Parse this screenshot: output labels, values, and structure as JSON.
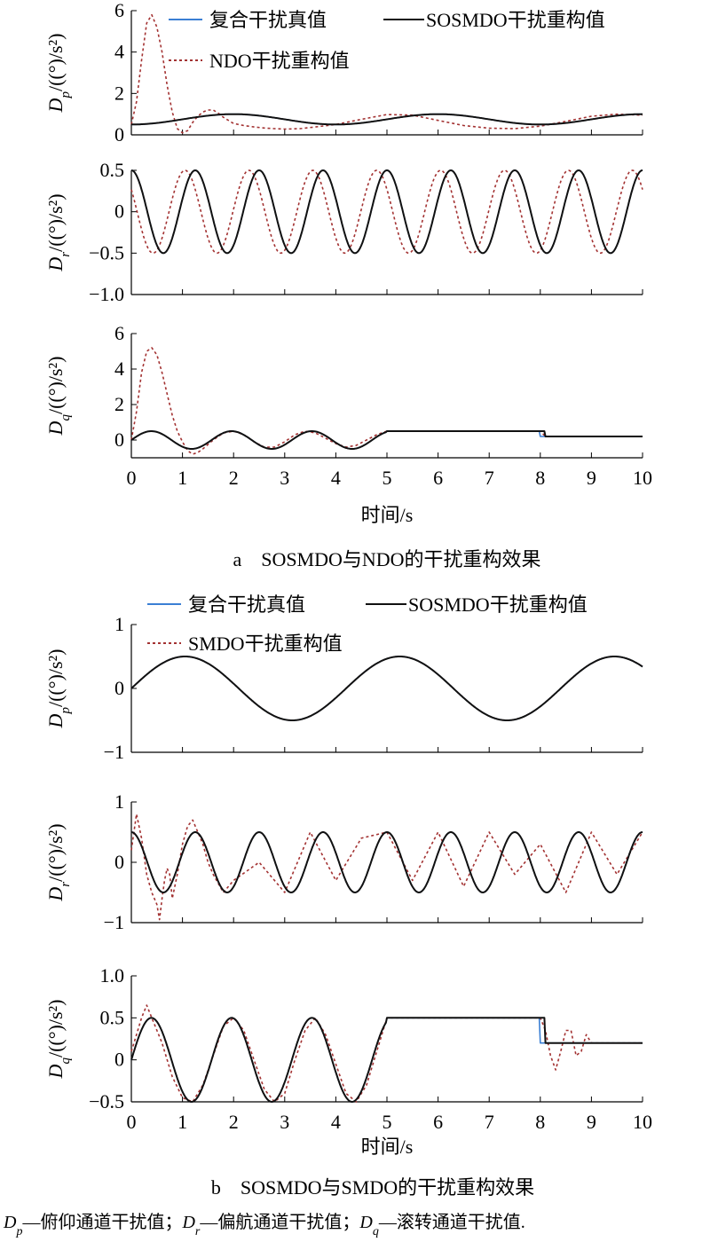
{
  "chart_data": [
    {
      "type": "line",
      "panel_group": "a",
      "ylabel": "D_p/((°)/s²)",
      "ylabel_sub": "p",
      "ylim": [
        0,
        6
      ],
      "yticks": [
        "0",
        "2",
        "4",
        "6"
      ],
      "yticks_values": [
        0,
        2,
        4,
        6
      ],
      "legend": [
        "复合干扰真值",
        "SOSMDO干扰重构值",
        "NDO干扰重构值"
      ],
      "series": [
        {
          "name": "复合干扰真值",
          "kind": "sine",
          "offset": 0.75,
          "amp": 0.25,
          "period": 4.0,
          "phase_t": 1.0
        },
        {
          "name": "SOSMDO干扰重构值",
          "kind": "sine",
          "offset": 0.75,
          "amp": 0.25,
          "period": 4.0,
          "phase_t": 1.0
        },
        {
          "name": "NDO干扰重构值",
          "kind": "points",
          "x": [
            0,
            0.1,
            0.2,
            0.3,
            0.4,
            0.5,
            0.6,
            0.7,
            0.8,
            0.9,
            1.0,
            1.1,
            1.2,
            1.3,
            1.4,
            1.5,
            1.6,
            1.7,
            1.8,
            1.9,
            2.0,
            2.2,
            2.4,
            2.6,
            2.8,
            3.0,
            3.3,
            3.6,
            4.0,
            4.5,
            5.0,
            5.5,
            6.0,
            6.5,
            7.0,
            7.5,
            8.0,
            8.5,
            9.0,
            9.5,
            10.0
          ],
          "y": [
            0.5,
            1.6,
            3.6,
            5.4,
            5.8,
            5.2,
            4.0,
            2.4,
            1.1,
            0.3,
            0.1,
            0.2,
            0.6,
            0.9,
            1.1,
            1.2,
            1.2,
            1.05,
            0.85,
            0.7,
            0.55,
            0.45,
            0.38,
            0.33,
            0.3,
            0.28,
            0.3,
            0.38,
            0.5,
            0.75,
            0.98,
            0.95,
            0.7,
            0.45,
            0.32,
            0.3,
            0.42,
            0.65,
            0.9,
            1.0,
            0.95
          ]
        }
      ]
    },
    {
      "type": "line",
      "panel_group": "a",
      "ylabel": "D_r/((°)/s²)",
      "ylabel_sub": "r",
      "ylim": [
        -1.0,
        0.5
      ],
      "yticks": [
        "-1.0",
        "-0.5",
        "0",
        "0.5"
      ],
      "yticks_values": [
        -1.0,
        -0.5,
        0,
        0.5
      ],
      "series": [
        {
          "name": "复合干扰真值",
          "kind": "cos",
          "offset": 0,
          "amp": 0.5,
          "period": 1.25,
          "phase_t": 0
        },
        {
          "name": "SOSMDO干扰重构值",
          "kind": "cos",
          "offset": 0,
          "amp": 0.5,
          "period": 1.25,
          "phase_t": 0.0
        },
        {
          "name": "NDO干扰重构值",
          "kind": "cos",
          "offset": 0,
          "amp": 0.5,
          "period": 1.25,
          "phase_t": -0.2
        }
      ]
    },
    {
      "type": "line",
      "panel_group": "a",
      "ylabel": "D_q/((°)/s²)",
      "ylabel_sub": "q",
      "ylim": [
        -1,
        6
      ],
      "yticks": [
        "0",
        "2",
        "4",
        "6"
      ],
      "yticks_values": [
        0,
        2,
        4,
        6
      ],
      "series": [
        {
          "name": "复合干扰真值",
          "kind": "piecewise",
          "period": 1.57,
          "amp": 0.5,
          "hold1": 0.5,
          "hold2": 0.2,
          "t1": 5.0,
          "t2": 8.0
        },
        {
          "name": "SOSMDO干扰重构值",
          "kind": "piecewise",
          "period": 1.57,
          "amp": 0.5,
          "hold1": 0.5,
          "hold2": 0.2,
          "t1": 5.0,
          "t2": 8.1
        },
        {
          "name": "NDO干扰重构值",
          "kind": "points",
          "x": [
            0,
            0.1,
            0.2,
            0.3,
            0.4,
            0.5,
            0.6,
            0.7,
            0.8,
            0.9,
            1.0,
            1.1,
            1.2,
            1.3,
            1.4,
            1.6,
            1.8,
            2.0,
            2.2,
            2.4,
            2.6,
            2.8,
            3.0,
            3.2,
            3.4,
            3.6,
            3.8,
            4.0,
            4.2,
            4.4,
            4.6,
            4.8,
            5.0,
            6.0,
            7.0,
            8.0,
            8.1,
            8.2,
            9.0,
            10.0
          ],
          "y": [
            0,
            1.6,
            3.8,
            5.0,
            5.2,
            4.8,
            3.8,
            2.6,
            1.4,
            0.5,
            -0.1,
            -0.6,
            -0.8,
            -0.7,
            -0.5,
            0.0,
            0.4,
            0.5,
            0.3,
            -0.1,
            -0.4,
            -0.4,
            -0.1,
            0.3,
            0.5,
            0.4,
            0.1,
            -0.2,
            -0.4,
            -0.3,
            0.0,
            0.3,
            0.5,
            0.5,
            0.5,
            0.5,
            0.2,
            0.2,
            0.2,
            0.2
          ]
        }
      ]
    },
    {
      "type": "line",
      "panel_group": "b",
      "ylabel": "D_p/((°)/s²)",
      "ylabel_sub": "p",
      "ylim": [
        -1,
        1
      ],
      "yticks": [
        "-1",
        "0",
        "1"
      ],
      "yticks_values": [
        -1,
        0,
        1
      ],
      "legend": [
        "复合干扰真值",
        "SOSMDO干扰重构值",
        "SMDO干扰重构值"
      ],
      "series": [
        {
          "name": "复合干扰真值",
          "kind": "sine",
          "offset": 0,
          "amp": 0.5,
          "period": 4.2,
          "phase_t": 0
        },
        {
          "name": "SOSMDO干扰重构值",
          "kind": "sine",
          "offset": 0,
          "amp": 0.5,
          "period": 4.2,
          "phase_t": 0
        },
        {
          "name": "SMDO干扰重构值",
          "kind": "sine",
          "offset": 0,
          "amp": 0.5,
          "period": 4.2,
          "phase_t": 0
        }
      ]
    },
    {
      "type": "line",
      "panel_group": "b",
      "ylabel": "D_r/((°)/s²)",
      "ylabel_sub": "r",
      "ylim": [
        -1,
        1
      ],
      "yticks": [
        "-1",
        "0",
        "1"
      ],
      "yticks_values": [
        -1,
        0,
        1
      ],
      "series": [
        {
          "name": "复合干扰真值",
          "kind": "cos",
          "offset": 0,
          "amp": 0.5,
          "period": 1.25,
          "phase_t": 0
        },
        {
          "name": "SOSMDO干扰重构值",
          "kind": "cos",
          "offset": 0,
          "amp": 0.5,
          "period": 1.25,
          "phase_t": 0
        },
        {
          "name": "SMDO干扰重构值",
          "kind": "points",
          "x": [
            0,
            0.1,
            0.2,
            0.3,
            0.4,
            0.5,
            0.55,
            0.6,
            0.65,
            0.7,
            0.75,
            0.8,
            0.9,
            1.0,
            1.1,
            1.2,
            1.3,
            1.4,
            1.5,
            1.6,
            1.8,
            2.0,
            2.5,
            3.0,
            3.5,
            4.0,
            4.5,
            5.0,
            5.5,
            6.0,
            6.5,
            7.0,
            7.5,
            8.0,
            8.5,
            9.0,
            9.5,
            10.0
          ],
          "y": [
            0.2,
            0.8,
            0.4,
            -0.2,
            -0.5,
            -0.7,
            -0.95,
            -0.6,
            -0.3,
            -0.1,
            -0.2,
            -0.6,
            -0.2,
            0.3,
            0.6,
            0.7,
            0.5,
            0.3,
            0.0,
            -0.2,
            -0.5,
            -0.3,
            0.0,
            -0.5,
            0.5,
            -0.3,
            0.4,
            0.5,
            -0.3,
            0.5,
            -0.4,
            0.5,
            -0.2,
            0.3,
            -0.5,
            0.5,
            -0.2,
            0.5
          ]
        }
      ]
    },
    {
      "type": "line",
      "panel_group": "b",
      "ylabel": "D_q/((°)/s²)",
      "ylabel_sub": "q",
      "ylim": [
        -0.5,
        1.0
      ],
      "yticks": [
        "-0.5",
        "0",
        "0.5",
        "1.0"
      ],
      "yticks_values": [
        -0.5,
        0,
        0.5,
        1.0
      ],
      "series": [
        {
          "name": "复合干扰真值",
          "kind": "piecewise",
          "period": 1.57,
          "amp": 0.5,
          "hold1": 0.5,
          "hold2": 0.2,
          "t1": 5.0,
          "t2": 8.0
        },
        {
          "name": "SOSMDO干扰重构值",
          "kind": "piecewise",
          "period": 1.57,
          "amp": 0.5,
          "hold1": 0.5,
          "hold2": 0.2,
          "t1": 5.0,
          "t2": 8.1
        },
        {
          "name": "SMDO干扰重构值",
          "kind": "points",
          "x": [
            0,
            0.1,
            0.2,
            0.3,
            0.4,
            0.5,
            0.6,
            0.8,
            1.0,
            1.2,
            1.4,
            1.6,
            1.8,
            2.0,
            2.2,
            2.4,
            2.6,
            2.8,
            3.0,
            3.2,
            3.4,
            3.6,
            3.8,
            4.0,
            4.2,
            4.4,
            4.6,
            4.8,
            5.0,
            6.0,
            7.0,
            8.0,
            8.1,
            8.2,
            8.3,
            8.4,
            8.5,
            8.6,
            8.7,
            8.8,
            8.9,
            9.0,
            9.2,
            10.0
          ],
          "y": [
            0.1,
            0.3,
            0.5,
            0.65,
            0.5,
            0.35,
            0.2,
            -0.2,
            -0.45,
            -0.5,
            -0.3,
            0.05,
            0.4,
            0.5,
            0.35,
            0.0,
            -0.35,
            -0.5,
            -0.4,
            0.0,
            0.35,
            0.5,
            0.3,
            -0.05,
            -0.4,
            -0.5,
            -0.3,
            0.1,
            0.5,
            0.5,
            0.5,
            0.5,
            0.35,
            0.05,
            -0.12,
            0.1,
            0.35,
            0.35,
            0.05,
            0.1,
            0.3,
            0.2,
            0.2,
            0.2
          ]
        }
      ]
    }
  ],
  "x_axis": {
    "xlabel": "时间/s",
    "xlim": [
      0,
      10
    ],
    "xticks": [
      "0",
      "1",
      "2",
      "3",
      "4",
      "5",
      "6",
      "7",
      "8",
      "9",
      "10"
    ]
  },
  "captions": {
    "a": "a　SOSMDO与NDO的干扰重构效果",
    "b": "b　SOSMDO与SMDO的干扰重构效果"
  },
  "legend_a": {
    "item1": "复合干扰真值",
    "item2": "SOSMDO干扰重构值",
    "item3": "NDO干扰重构值"
  },
  "legend_b": {
    "item1": "复合干扰真值",
    "item2": "SOSMDO干扰重构值",
    "item3": "SMDO干扰重构值"
  },
  "ylabel_main": "D",
  "ylabel_unit": "/((°)/s²)",
  "footnote": {
    "p_sym": "D",
    "p_sub": "p",
    "p_text": "—俯仰通道干扰值；",
    "r_sym": "D",
    "r_sub": "r",
    "r_text": "—偏航通道干扰值；",
    "q_sym": "D",
    "q_sub": "q",
    "q_text": "—滚转通道干扰值."
  },
  "colors": {
    "true_value": "#3b7fd4",
    "sosmdo": "#111111",
    "compare": "#a33232"
  }
}
